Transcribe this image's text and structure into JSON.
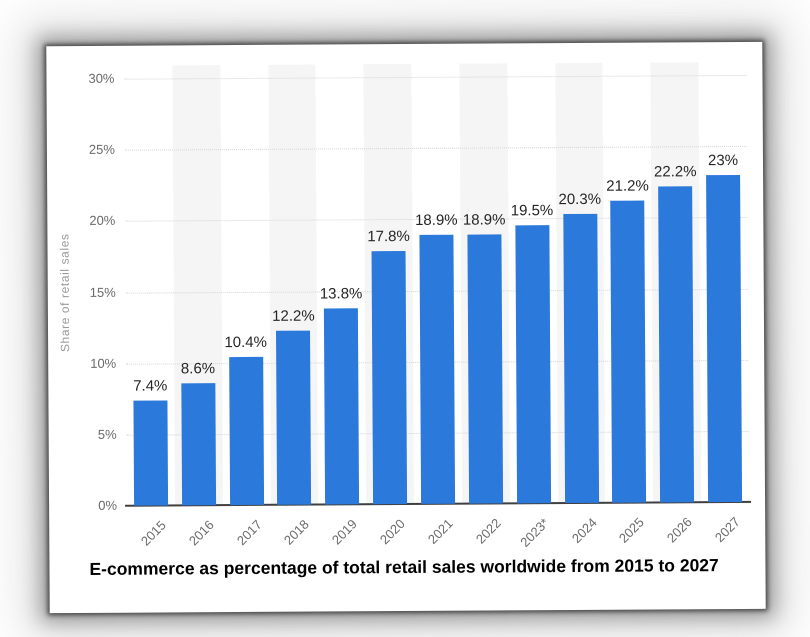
{
  "chart_data": {
    "type": "bar",
    "title": "E-commerce as percentage of total retail sales worldwide from 2015 to 2027",
    "categories": [
      "2015",
      "2016",
      "2017",
      "2018",
      "2019",
      "2020",
      "2021",
      "2022",
      "2023*",
      "2024",
      "2025",
      "2026",
      "2027"
    ],
    "values": [
      7.4,
      8.6,
      10.4,
      12.2,
      13.8,
      17.8,
      18.9,
      18.9,
      19.5,
      20.3,
      21.2,
      22.2,
      23
    ],
    "value_labels": [
      "7.4%",
      "8.6%",
      "10.4%",
      "12.2%",
      "13.8%",
      "17.8%",
      "18.9%",
      "18.9%",
      "19.5%",
      "20.3%",
      "21.2%",
      "22.2%",
      "23%"
    ],
    "xlabel": "",
    "ylabel": "Share of retail sales",
    "ylim": [
      0,
      30
    ],
    "yticks": [
      0,
      5,
      10,
      15,
      20,
      25,
      30
    ],
    "ytick_labels": [
      "0%",
      "5%",
      "10%",
      "15%",
      "20%",
      "25%",
      "30%"
    ],
    "grid": "horizontal-dotted",
    "legend": "none",
    "plot_bands": "alternating vertical bands on odd categories",
    "colors": {
      "bar": "#2b79da",
      "band": "#f5f5f5",
      "gridline": "#d4d4d4",
      "axis_line": "#3f3f3f",
      "tick_text": "#6b6b6b",
      "value_label_text": "#252525",
      "ylabel_text": "#9a9a9a",
      "title_text": "#000000",
      "card_background": "#ffffff"
    }
  }
}
